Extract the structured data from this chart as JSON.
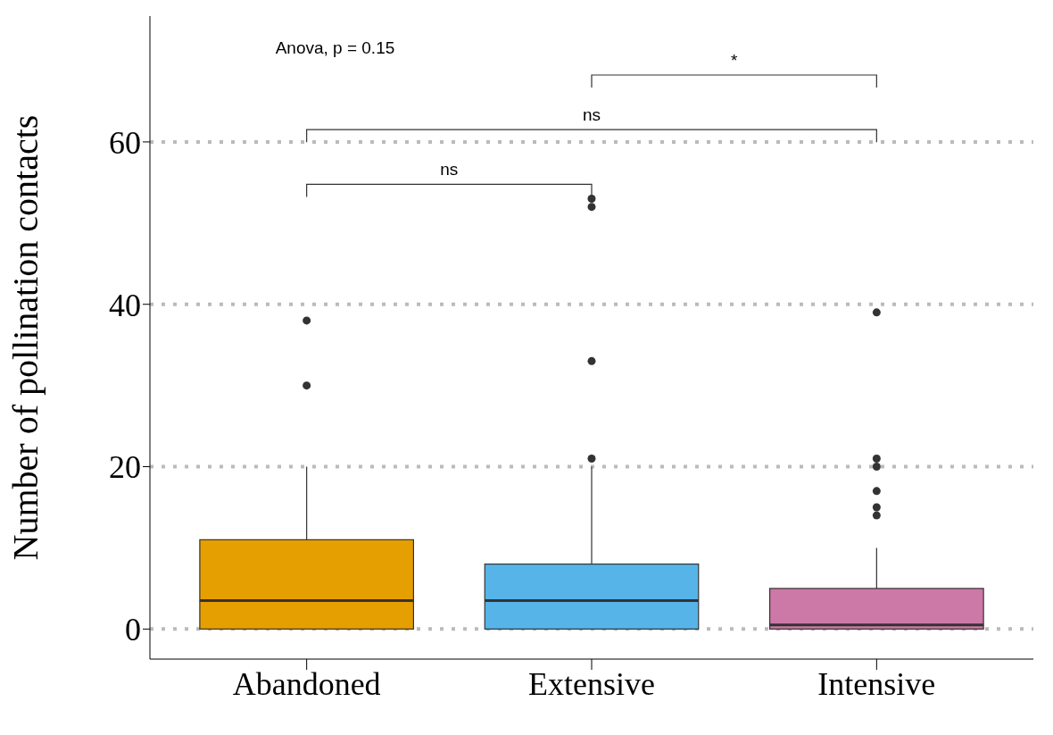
{
  "chart_data": {
    "type": "box",
    "ylabel": "Number of pollination contacts",
    "categories": [
      "Abandoned",
      "Extensive",
      "Intensive"
    ],
    "colors": [
      "#e69f00",
      "#56b4e9",
      "#cc79a7"
    ],
    "boxes": [
      {
        "low": 0,
        "q1": 0,
        "median": 3.5,
        "q3": 11,
        "high": 20,
        "outliers": [
          30,
          38
        ]
      },
      {
        "low": 0,
        "q1": 0,
        "median": 3.5,
        "q3": 8,
        "high": 20,
        "outliers": [
          21,
          33,
          52,
          53
        ]
      },
      {
        "low": 0,
        "q1": 0,
        "median": 0.5,
        "q3": 5,
        "high": 10,
        "outliers": [
          14,
          15,
          17,
          20,
          21,
          39
        ]
      }
    ],
    "ylim": [
      -3.7,
      75.5
    ],
    "yticks": [
      0,
      20,
      40,
      60
    ],
    "grid": "y",
    "marker": "circle",
    "annotations": [
      "Anova, p = 0.15",
      "ns",
      "ns",
      "*"
    ]
  }
}
